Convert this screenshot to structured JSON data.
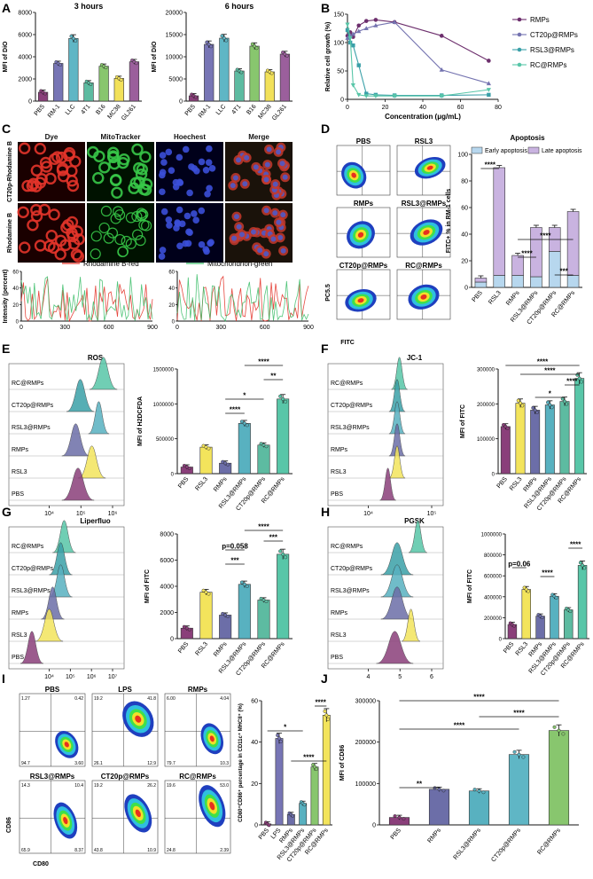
{
  "panel_labels": [
    "A",
    "B",
    "C",
    "D",
    "E",
    "F",
    "G",
    "H",
    "I",
    "J"
  ],
  "colors": {
    "PBS": "#8a3f7a",
    "RM1": "#7775b5",
    "LLC": "#5fb6c5",
    "T41": "#5dbba1",
    "B16": "#88c66e",
    "MC38": "#f2e15a",
    "GL261": "#9b5f9c",
    "RMPs": "#6d2f6d",
    "CT20": "#7473b0",
    "RSL3": "#3aa0a8",
    "RC": "#58c6a8",
    "RSL3y": "#f3e45c",
    "fig_RMPs": "#6c6ea8",
    "fig_RSL3RMPs": "#58b1c0",
    "early": "#b7d7ee",
    "late": "#c9b3e0"
  },
  "panelA": {
    "chart_data": [
      {
        "type": "bar",
        "title": "3 hours",
        "ylabel": "MFI of DiO",
        "categories": [
          "PBS",
          "RM-1",
          "LLC",
          "4T1",
          "B16",
          "MC38",
          "GL261"
        ],
        "values": [
          800,
          3400,
          5650,
          1650,
          3150,
          2050,
          3550
        ],
        "ylim": [
          0,
          8000
        ],
        "yticks": [
          "0",
          "2000",
          "4000",
          "6000",
          "8000"
        ]
      },
      {
        "type": "bar",
        "title": "6 hours",
        "ylabel": "MFI of DiO",
        "categories": [
          "PBS",
          "RM-1",
          "LLC",
          "4T1",
          "B16",
          "MC38",
          "GL261"
        ],
        "values": [
          1200,
          12800,
          14200,
          6800,
          12400,
          6600,
          10600
        ],
        "ylim": [
          0,
          20000
        ],
        "yticks": [
          "0",
          "5000",
          "10000",
          "15000",
          "20000"
        ]
      }
    ]
  },
  "panelB": {
    "chart_data": {
      "type": "line",
      "ylabel": "Relative cell growth (%)",
      "xlabel": "Concentration (μg/mL)",
      "x": [
        0,
        1.5,
        3,
        6,
        10,
        15,
        25,
        50,
        75
      ],
      "ylim": [
        0,
        150
      ],
      "xlim": [
        0,
        80
      ],
      "yticks": [
        "0",
        "50",
        "100",
        "150"
      ],
      "xticks": [
        "0",
        "20",
        "40",
        "60",
        "80"
      ],
      "series": [
        {
          "name": "RMPs",
          "values": [
            112,
            118,
            110,
            130,
            138,
            140,
            136,
            112,
            68
          ]
        },
        {
          "name": "CT20p@RMPs",
          "values": [
            108,
            112,
            115,
            120,
            125,
            130,
            136,
            52,
            28
          ]
        },
        {
          "name": "RSL3@RMPs",
          "values": [
            122,
            100,
            95,
            60,
            10,
            8,
            7,
            7,
            8
          ]
        },
        {
          "name": "RC@RMPs",
          "values": [
            132,
            108,
            25,
            8,
            6,
            6,
            6,
            6,
            17
          ]
        }
      ]
    }
  },
  "panelC": {
    "headers": [
      "Dye",
      "MitoTracker",
      "Hoechest",
      "Merge"
    ],
    "rows": [
      "CT20p-Rhodamine B",
      "Rhodamine B"
    ],
    "legend_left": "Rhodamine B-red",
    "legend_right": "Mitochondrion-green",
    "ylabel": "Intensity (percent)",
    "yticks": [
      "0",
      "20",
      "40",
      "60"
    ],
    "xticks_left": [
      "0",
      "300",
      "600",
      "900"
    ],
    "xticks_right": [
      "0",
      "300",
      "600",
      "900"
    ]
  },
  "panelD": {
    "flow_titles": [
      "PBS",
      "RSL3",
      "RMPs",
      "RSL3@RMPs",
      "CT20p@RMPs",
      "RC@RMPs"
    ],
    "flow_ylabel": "PC5.5",
    "flow_xlabel": "FITC",
    "chart_data": {
      "type": "bar",
      "title": "Apoptosis",
      "ylabel": "FITC+ % in RM-1 cells",
      "categories": [
        "PBS",
        "RSL3",
        "RMPs",
        "RSL3@RMPs",
        "CT20p@RMPs",
        "RC@RMPs"
      ],
      "series": [
        {
          "name": "Early apoptosis",
          "values": [
            4,
            9,
            9,
            8,
            27,
            9
          ]
        },
        {
          "name": "Late apoptosis",
          "values": [
            3,
            81,
            15,
            37,
            18,
            48
          ]
        }
      ],
      "ylim": [
        0,
        100
      ],
      "yticks": [
        "0",
        "20",
        "40",
        "60",
        "80",
        "100"
      ]
    },
    "sig": [
      "****",
      "****",
      "****",
      "***"
    ]
  },
  "panelE": {
    "title": "ROS",
    "hist_labels": [
      "RC@RMPs",
      "CT20p@RMPs",
      "RSL3@RMPs",
      "RMPs",
      "RSL3",
      "PBS"
    ],
    "hist_xticks": [
      "10⁴",
      "10⁵",
      "10⁶"
    ],
    "chart_data": {
      "type": "bar",
      "ylabel": "MFI of H2DCFDA",
      "categories": [
        "PBS",
        "RSL3",
        "RMPs",
        "RSL3@RMPs",
        "CT20p@RMPs",
        "RC@RMPs"
      ],
      "values": [
        95000,
        380000,
        150000,
        720000,
        410000,
        1070000
      ],
      "ylim": [
        0,
        1500000
      ],
      "yticks": [
        "0",
        "500000",
        "1000000",
        "1500000"
      ]
    },
    "sig": [
      "****",
      "**",
      "*",
      "****"
    ]
  },
  "panelF": {
    "title": "JC-1",
    "hist_labels": [
      "RC@RMPs",
      "CT20p@RMPs",
      "RSL3@RMPs",
      "RMPs",
      "RSL3",
      "PBS"
    ],
    "hist_xticks": [
      "10⁴",
      "10⁵"
    ],
    "chart_data": {
      "type": "bar",
      "ylabel": "MFI of FITC",
      "categories": [
        "PBS",
        "RSL3",
        "RMPs",
        "RSL3@RMPs",
        "CT20p@RMPs",
        "RC@RMPs"
      ],
      "values": [
        135000,
        202000,
        182000,
        197000,
        207000,
        273000
      ],
      "ylim": [
        0,
        300000
      ],
      "yticks": [
        "0",
        "100000",
        "200000",
        "300000"
      ]
    },
    "sig": [
      "****",
      "****",
      "****",
      "*"
    ]
  },
  "panelG": {
    "title": "Liperfluo",
    "hist_labels": [
      "RC@RMPs",
      "CT20p@RMPs",
      "RSL3@RMPs",
      "RMPs",
      "RSL3",
      "PBS"
    ],
    "hist_xticks": [
      "10⁴",
      "10⁵",
      "10⁶",
      "10⁷"
    ],
    "chart_data": {
      "type": "bar",
      "ylabel": "MFI of FITC",
      "categories": [
        "PBS",
        "RSL3",
        "RMPs",
        "RSL3@RMPs",
        "CT20p@RMPs",
        "RC@RMPs"
      ],
      "values": [
        800,
        3550,
        1800,
        4150,
        2950,
        6450
      ],
      "ylim": [
        0,
        8000
      ],
      "yticks": [
        "0",
        "2000",
        "4000",
        "6000",
        "8000"
      ]
    },
    "sig": [
      "****",
      "***",
      "p=0.058",
      "***"
    ]
  },
  "panelH": {
    "title": "PGSK",
    "hist_labels": [
      "RC@RMPs",
      "CT20p@RMPs",
      "RSL3@RMPs",
      "RMPs",
      "RSL3",
      "PBS"
    ],
    "hist_xticks": [
      "4",
      "5",
      "6"
    ],
    "chart_data": {
      "type": "bar",
      "ylabel": "MFI of FITC",
      "categories": [
        "PBS",
        "RSL3",
        "RMPs",
        "RSL3@RMPs",
        "CT20p@RMPs",
        "RC@RMPs"
      ],
      "values": [
        135000,
        470000,
        215000,
        405000,
        275000,
        700000
      ],
      "ylim": [
        0,
        1000000
      ],
      "yticks": [
        "0",
        "200000",
        "400000",
        "600000",
        "800000",
        "1000000"
      ]
    },
    "sig": [
      "p=0.06",
      "****",
      "****"
    ]
  },
  "panelI": {
    "flow_titles": [
      "PBS",
      "LPS",
      "RMPs",
      "RSL3@RMPs",
      "CT20p@RMPs",
      "RC@RMPs"
    ],
    "quadrants": [
      [
        "1.27",
        "0.42",
        "94.7",
        "3.60"
      ],
      [
        "19.2",
        "41.8",
        "26.1",
        "12.9"
      ],
      [
        "6.00",
        "4.04",
        "79.7",
        "10.3"
      ],
      [
        "14.3",
        "10.4",
        "65.9",
        "8.37"
      ],
      [
        "19.2",
        "26.2",
        "43.8",
        "10.9"
      ],
      [
        "19.6",
        "53.0",
        "24.8",
        "2.39"
      ]
    ],
    "flow_ylabel": "CD86",
    "flow_xlabel": "CD80",
    "chart_data": {
      "type": "bar",
      "ylabel": "CD80⁺CD86⁺ percentage in CD11c⁺ MHCII⁺ (%)",
      "categories": [
        "PBS",
        "LPS",
        "RMPs",
        "RSL3@RMPs",
        "CT20p@RMPs",
        "RC@RMPs"
      ],
      "values": [
        0.5,
        41.8,
        5,
        10.4,
        28,
        53
      ],
      "ylim": [
        0,
        60
      ],
      "yticks": [
        "0",
        "20",
        "40",
        "60"
      ]
    },
    "sig": [
      "*",
      "****",
      "****"
    ]
  },
  "panelJ": {
    "chart_data": {
      "type": "bar",
      "ylabel": "MFI of CD86",
      "categories": [
        "PBS",
        "RMPs",
        "RSL3@RMPs",
        "CT20p@RMPs",
        "RC@RMPs"
      ],
      "values": [
        18000,
        86000,
        82000,
        170000,
        228000
      ],
      "ylim": [
        0,
        300000
      ],
      "yticks": [
        "0",
        "100000",
        "200000",
        "300000"
      ]
    },
    "sig": [
      "****",
      "****",
      "****",
      "**"
    ]
  }
}
